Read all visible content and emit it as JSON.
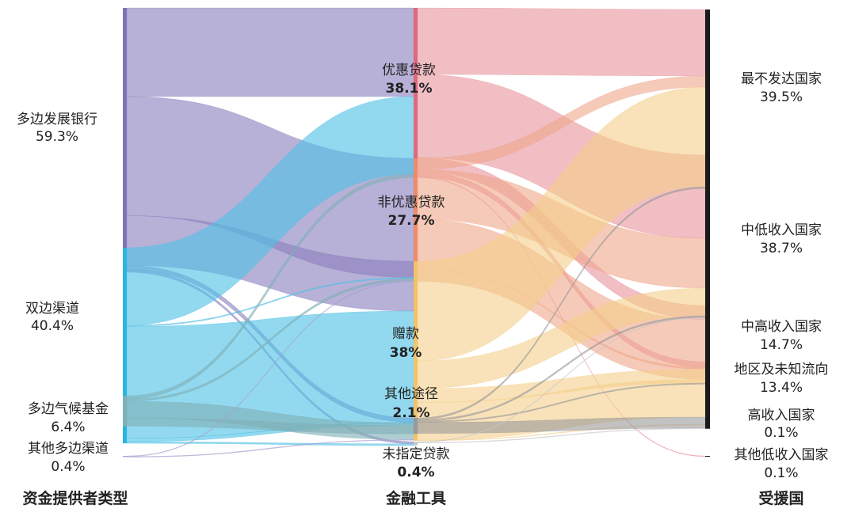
{
  "chart_data": {
    "type": "sankey",
    "column_titles": [
      "资金提供者类型",
      "金融工具",
      "受援国"
    ],
    "sources": [
      {
        "id": "mdb",
        "name": "多边发展银行",
        "pct": "59.3%",
        "color": "#7e74b8",
        "flow_color": "#8a80be"
      },
      {
        "id": "bil",
        "name": "双边渠道",
        "pct": "40.4%",
        "color": "#29b6e0",
        "flow_color": "#4fc2e6"
      },
      {
        "id": "mcf",
        "name": "多边气候基金",
        "pct": "6.4%",
        "color": "#7fb0b7",
        "flow_color": "#7fb0b7"
      },
      {
        "id": "omc",
        "name": "其他多边渠道",
        "pct": "0.4%",
        "color": "#a8a0d0",
        "flow_color": "#a8a0d0"
      }
    ],
    "instruments": [
      {
        "id": "cl",
        "name": "优惠贷款",
        "pct": "38.1%",
        "color": "#e06a7a",
        "flow_color": "#e8929c"
      },
      {
        "id": "ncl",
        "name": "非优惠贷款",
        "pct": "27.7%",
        "color": "#ee8c6a",
        "flow_color": "#f0a68a"
      },
      {
        "id": "gr",
        "name": "赠款",
        "pct": "38%",
        "color": "#f3c26a",
        "flow_color": "#f5cf8a"
      },
      {
        "id": "oth",
        "name": "其他途径",
        "pct": "2.1%",
        "color": "#9a9a9a",
        "flow_color": "#9a9a9a"
      },
      {
        "id": "unl",
        "name": "未指定贷款",
        "pct": "0.4%",
        "color": "#c8c8c8",
        "flow_color": "#c8c8c8"
      }
    ],
    "recipients": [
      {
        "id": "ldc",
        "name": "最不发达国家",
        "pct": "39.5%"
      },
      {
        "id": "lmi",
        "name": "中低收入国家",
        "pct": "38.7%"
      },
      {
        "id": "umi",
        "name": "中高收入国家",
        "pct": "14.7%"
      },
      {
        "id": "reg",
        "name": "地区及未知流向",
        "pct": "13.4%"
      },
      {
        "id": "hi",
        "name": "高收入国家",
        "pct": "0.1%"
      },
      {
        "id": "oli",
        "name": "其他低收入国家",
        "pct": "0.1%"
      }
    ],
    "links_source_to_instrument": [
      {
        "source": "mdb",
        "target": "cl",
        "value": 16
      },
      {
        "source": "mdb",
        "target": "ncl",
        "value": 21.5
      },
      {
        "source": "mdb",
        "target": "gr",
        "value": 9
      },
      {
        "source": "mdb",
        "target": "oth",
        "value": 0.8
      },
      {
        "source": "mdb",
        "target": "unl",
        "value": 0.4
      },
      {
        "source": "bil",
        "target": "cl",
        "value": 14
      },
      {
        "source": "bil",
        "target": "ncl",
        "value": 0.2
      },
      {
        "source": "bil",
        "target": "gr",
        "value": 20.2
      },
      {
        "source": "bil",
        "target": "oth",
        "value": 0.6
      },
      {
        "source": "bil",
        "target": "unl",
        "value": 0.3
      },
      {
        "source": "mcf",
        "target": "cl",
        "value": 0.6
      },
      {
        "source": "mcf",
        "target": "ncl",
        "value": 0.4
      },
      {
        "source": "mcf",
        "target": "gr",
        "value": 3
      },
      {
        "source": "mcf",
        "target": "oth",
        "value": 1.5
      },
      {
        "source": "omc",
        "target": "ncl",
        "value": 0.1
      },
      {
        "source": "omc",
        "target": "gr",
        "value": 0.1
      }
    ],
    "links_instrument_to_recipient": [
      {
        "source": "cl",
        "target": "ldc",
        "value": 12
      },
      {
        "source": "cl",
        "target": "lmi",
        "value": 15
      },
      {
        "source": "cl",
        "target": "umi",
        "value": 2.5
      },
      {
        "source": "cl",
        "target": "reg",
        "value": 1
      },
      {
        "source": "cl",
        "target": "oli",
        "value": 0.1
      },
      {
        "source": "ncl",
        "target": "ldc",
        "value": 2
      },
      {
        "source": "ncl",
        "target": "lmi",
        "value": 9
      },
      {
        "source": "ncl",
        "target": "umi",
        "value": 9
      },
      {
        "source": "ncl",
        "target": "reg",
        "value": 2.2
      },
      {
        "source": "gr",
        "target": "ldc",
        "value": 18
      },
      {
        "source": "gr",
        "target": "lmi",
        "value": 5
      },
      {
        "source": "gr",
        "target": "umi",
        "value": 2.5
      },
      {
        "source": "gr",
        "target": "reg",
        "value": 6.8
      },
      {
        "source": "gr",
        "target": "hi",
        "value": 0.1
      },
      {
        "source": "oth",
        "target": "ldc",
        "value": 0.3
      },
      {
        "source": "oth",
        "target": "lmi",
        "value": 0.3
      },
      {
        "source": "oth",
        "target": "umi",
        "value": 0.2
      },
      {
        "source": "oth",
        "target": "reg",
        "value": 2
      },
      {
        "source": "unl",
        "target": "lmi",
        "value": 0.1
      },
      {
        "source": "unl",
        "target": "reg",
        "value": 0.1
      }
    ]
  }
}
